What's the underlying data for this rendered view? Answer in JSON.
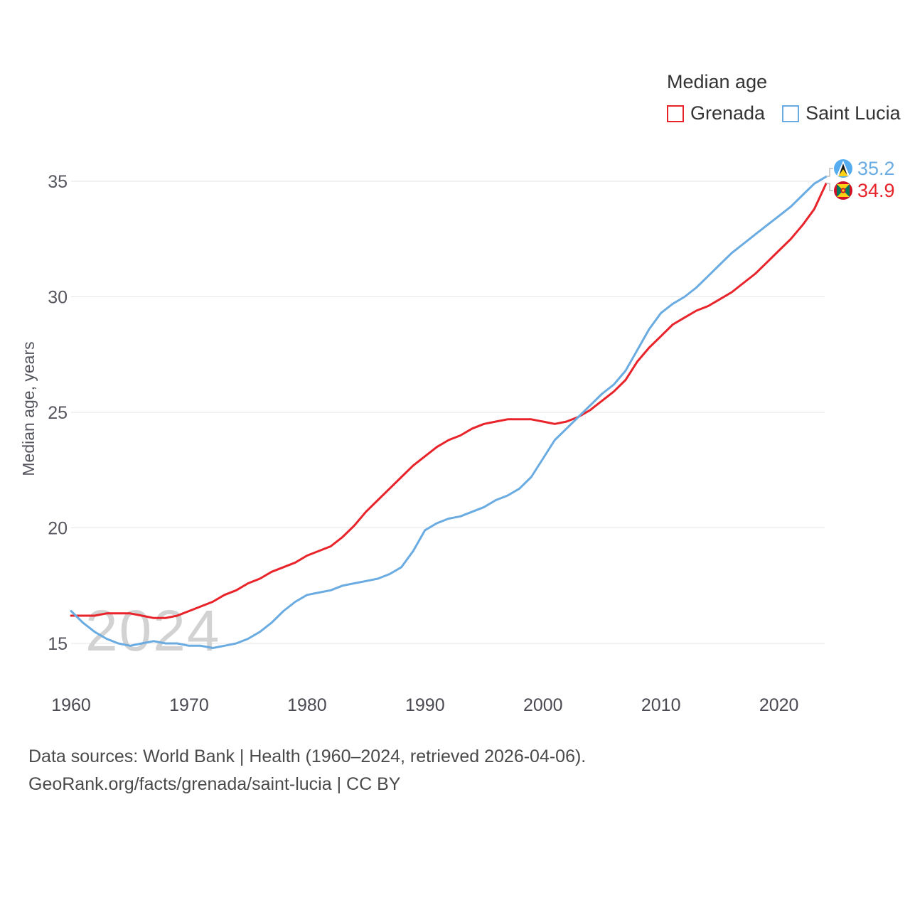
{
  "legend": {
    "title": "Median age",
    "items": [
      {
        "label": "Grenada",
        "color": "#e8232a"
      },
      {
        "label": "Saint Lucia",
        "color": "#6aace2"
      }
    ]
  },
  "watermark": "2024",
  "footer": {
    "line1": "Data sources: World Bank | Health (1960–2024, retrieved 2026-04-06).",
    "line2": "GeoRank.org/facts/grenada/saint-lucia | CC BY"
  },
  "chart_data": {
    "type": "line",
    "title": "Median age",
    "xlabel": "",
    "ylabel": "Median age, years",
    "grid": true,
    "legend_position": "top-right",
    "xlim": [
      1960,
      2024
    ],
    "ylim": [
      14,
      36.5
    ],
    "y_ticks": [
      15,
      20,
      25,
      30,
      35
    ],
    "x_ticks": [
      1960,
      1970,
      1980,
      1990,
      2000,
      2010,
      2020
    ],
    "x": [
      1960,
      1961,
      1962,
      1963,
      1964,
      1965,
      1966,
      1967,
      1968,
      1969,
      1970,
      1971,
      1972,
      1973,
      1974,
      1975,
      1976,
      1977,
      1978,
      1979,
      1980,
      1981,
      1982,
      1983,
      1984,
      1985,
      1986,
      1987,
      1988,
      1989,
      1990,
      1991,
      1992,
      1993,
      1994,
      1995,
      1996,
      1997,
      1998,
      1999,
      2000,
      2001,
      2002,
      2003,
      2004,
      2005,
      2006,
      2007,
      2008,
      2009,
      2010,
      2011,
      2012,
      2013,
      2014,
      2015,
      2016,
      2017,
      2018,
      2019,
      2020,
      2021,
      2022,
      2023,
      2024
    ],
    "series": [
      {
        "name": "Grenada",
        "color": "#e8232a",
        "end_label": "34.9",
        "values": [
          16.2,
          16.2,
          16.2,
          16.3,
          16.3,
          16.3,
          16.2,
          16.1,
          16.1,
          16.2,
          16.4,
          16.6,
          16.8,
          17.1,
          17.3,
          17.6,
          17.8,
          18.1,
          18.3,
          18.5,
          18.8,
          19.0,
          19.2,
          19.6,
          20.1,
          20.7,
          21.2,
          21.7,
          22.2,
          22.7,
          23.1,
          23.5,
          23.8,
          24.0,
          24.3,
          24.5,
          24.6,
          24.7,
          24.7,
          24.7,
          24.6,
          24.5,
          24.6,
          24.8,
          25.1,
          25.5,
          25.9,
          26.4,
          27.2,
          27.8,
          28.3,
          28.8,
          29.1,
          29.4,
          29.6,
          29.9,
          30.2,
          30.6,
          31.0,
          31.5,
          32.0,
          32.5,
          33.1,
          33.8,
          34.9
        ]
      },
      {
        "name": "Saint Lucia",
        "color": "#6aace2",
        "end_label": "35.2",
        "values": [
          16.4,
          15.9,
          15.5,
          15.2,
          15.0,
          14.9,
          15.0,
          15.1,
          15.0,
          15.0,
          14.9,
          14.9,
          14.8,
          14.9,
          15.0,
          15.2,
          15.5,
          15.9,
          16.4,
          16.8,
          17.1,
          17.2,
          17.3,
          17.5,
          17.6,
          17.7,
          17.8,
          18.0,
          18.3,
          19.0,
          19.9,
          20.2,
          20.4,
          20.5,
          20.7,
          20.9,
          21.2,
          21.4,
          21.7,
          22.2,
          23.0,
          23.8,
          24.3,
          24.8,
          25.3,
          25.8,
          26.2,
          26.8,
          27.7,
          28.6,
          29.3,
          29.7,
          30.0,
          30.4,
          30.9,
          31.4,
          31.9,
          32.3,
          32.7,
          33.1,
          33.5,
          33.9,
          34.4,
          34.9,
          35.2
        ]
      }
    ]
  }
}
